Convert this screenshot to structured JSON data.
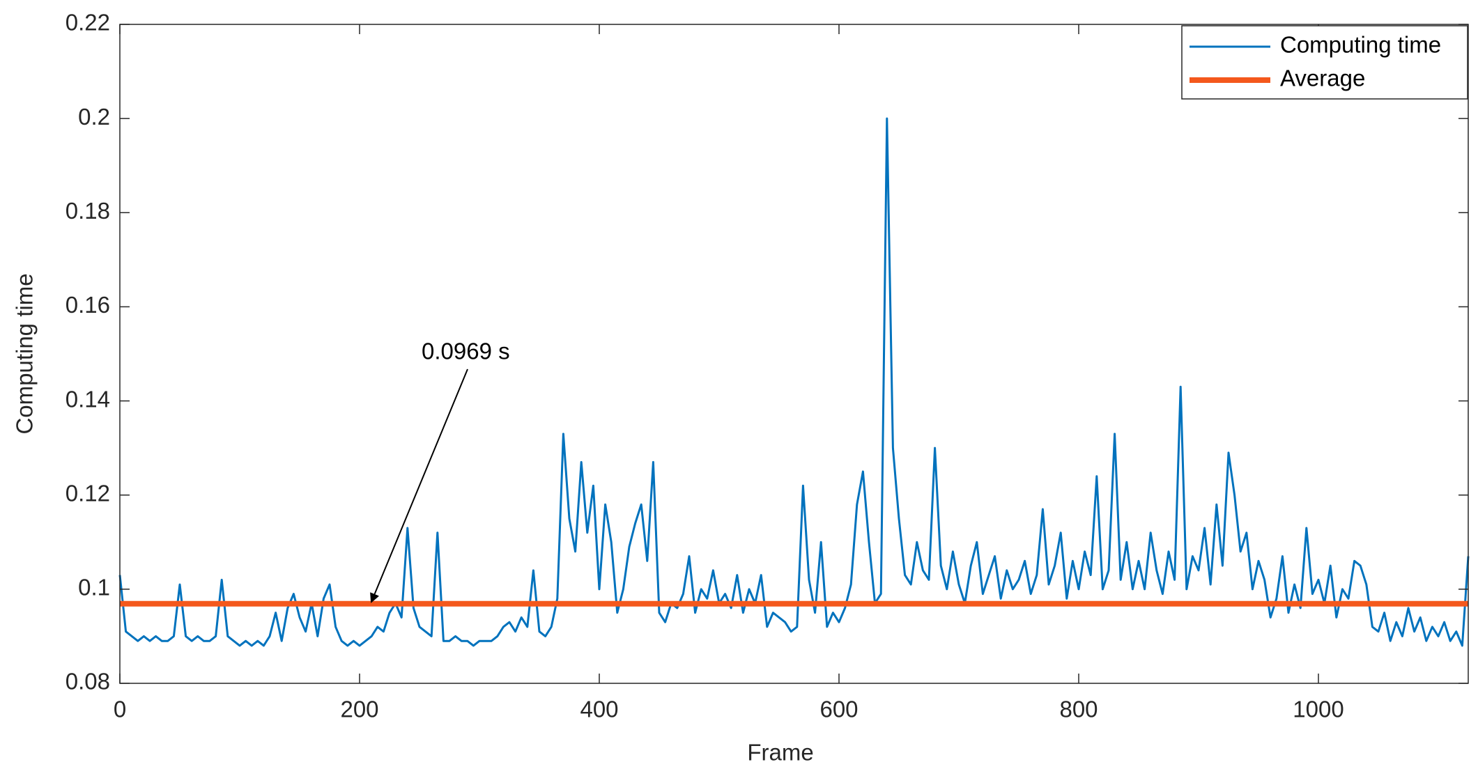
{
  "chart_data": {
    "type": "line",
    "xlabel": "Frame",
    "ylabel": "Computing time",
    "annotation": "0.0969 s",
    "xlim": [
      0,
      1125
    ],
    "ylim": [
      0.08,
      0.22
    ],
    "xticks": [
      0,
      200,
      400,
      600,
      800,
      1000
    ],
    "yticks": [
      0.08,
      0.1,
      0.12,
      0.14,
      0.16,
      0.18,
      0.2,
      0.22
    ],
    "legend": "northeast",
    "series": [
      {
        "name": "Computing time",
        "color": "#0072bd",
        "x": [
          0,
          5,
          10,
          15,
          20,
          25,
          30,
          35,
          40,
          45,
          50,
          55,
          60,
          65,
          70,
          75,
          80,
          85,
          90,
          95,
          100,
          105,
          110,
          115,
          120,
          125,
          130,
          135,
          140,
          145,
          150,
          155,
          160,
          165,
          170,
          175,
          180,
          185,
          190,
          195,
          200,
          205,
          210,
          215,
          220,
          225,
          230,
          235,
          240,
          245,
          250,
          255,
          260,
          265,
          270,
          275,
          280,
          285,
          290,
          295,
          300,
          305,
          310,
          315,
          320,
          325,
          330,
          335,
          340,
          345,
          350,
          355,
          360,
          365,
          370,
          375,
          380,
          385,
          390,
          395,
          400,
          405,
          410,
          415,
          420,
          425,
          430,
          435,
          440,
          445,
          450,
          455,
          460,
          465,
          470,
          475,
          480,
          485,
          490,
          495,
          500,
          505,
          510,
          515,
          520,
          525,
          530,
          535,
          540,
          545,
          550,
          555,
          560,
          565,
          570,
          575,
          580,
          585,
          590,
          595,
          600,
          605,
          610,
          615,
          620,
          625,
          630,
          635,
          640,
          645,
          650,
          655,
          660,
          665,
          670,
          675,
          680,
          685,
          690,
          695,
          700,
          705,
          710,
          715,
          720,
          725,
          730,
          735,
          740,
          745,
          750,
          755,
          760,
          765,
          770,
          775,
          780,
          785,
          790,
          795,
          800,
          805,
          810,
          815,
          820,
          825,
          830,
          835,
          840,
          845,
          850,
          855,
          860,
          865,
          870,
          875,
          880,
          885,
          890,
          895,
          900,
          905,
          910,
          915,
          920,
          925,
          930,
          935,
          940,
          945,
          950,
          955,
          960,
          965,
          970,
          975,
          980,
          985,
          990,
          995,
          1000,
          1005,
          1010,
          1015,
          1020,
          1025,
          1030,
          1035,
          1040,
          1045,
          1050,
          1055,
          1060,
          1065,
          1070,
          1075,
          1080,
          1085,
          1090,
          1095,
          1100,
          1105,
          1110,
          1115,
          1120,
          1125
        ],
        "values": [
          0.103,
          0.091,
          0.09,
          0.089,
          0.09,
          0.089,
          0.09,
          0.089,
          0.089,
          0.09,
          0.101,
          0.09,
          0.089,
          0.09,
          0.089,
          0.089,
          0.09,
          0.102,
          0.09,
          0.089,
          0.088,
          0.089,
          0.088,
          0.089,
          0.088,
          0.09,
          0.095,
          0.089,
          0.096,
          0.099,
          0.094,
          0.091,
          0.097,
          0.09,
          0.098,
          0.101,
          0.092,
          0.089,
          0.088,
          0.089,
          0.088,
          0.089,
          0.09,
          0.092,
          0.091,
          0.095,
          0.097,
          0.094,
          0.113,
          0.096,
          0.092,
          0.091,
          0.09,
          0.112,
          0.089,
          0.089,
          0.09,
          0.089,
          0.089,
          0.088,
          0.089,
          0.089,
          0.089,
          0.09,
          0.092,
          0.093,
          0.091,
          0.094,
          0.092,
          0.104,
          0.091,
          0.09,
          0.092,
          0.098,
          0.133,
          0.115,
          0.108,
          0.127,
          0.112,
          0.122,
          0.1,
          0.118,
          0.11,
          0.095,
          0.1,
          0.109,
          0.114,
          0.118,
          0.106,
          0.127,
          0.095,
          0.093,
          0.097,
          0.096,
          0.099,
          0.107,
          0.095,
          0.1,
          0.098,
          0.104,
          0.097,
          0.099,
          0.096,
          0.103,
          0.095,
          0.1,
          0.097,
          0.103,
          0.092,
          0.095,
          0.094,
          0.093,
          0.091,
          0.092,
          0.122,
          0.102,
          0.095,
          0.11,
          0.092,
          0.095,
          0.093,
          0.096,
          0.101,
          0.118,
          0.125,
          0.11,
          0.097,
          0.099,
          0.2,
          0.13,
          0.115,
          0.103,
          0.101,
          0.11,
          0.104,
          0.102,
          0.13,
          0.105,
          0.1,
          0.108,
          0.101,
          0.097,
          0.105,
          0.11,
          0.099,
          0.103,
          0.107,
          0.098,
          0.104,
          0.1,
          0.102,
          0.106,
          0.099,
          0.103,
          0.117,
          0.101,
          0.105,
          0.112,
          0.098,
          0.106,
          0.1,
          0.108,
          0.103,
          0.124,
          0.1,
          0.104,
          0.133,
          0.102,
          0.11,
          0.1,
          0.106,
          0.1,
          0.112,
          0.104,
          0.099,
          0.108,
          0.102,
          0.143,
          0.1,
          0.107,
          0.104,
          0.113,
          0.101,
          0.118,
          0.105,
          0.129,
          0.12,
          0.108,
          0.112,
          0.1,
          0.106,
          0.102,
          0.094,
          0.098,
          0.107,
          0.095,
          0.101,
          0.096,
          0.113,
          0.099,
          0.102,
          0.097,
          0.105,
          0.094,
          0.1,
          0.098,
          0.106,
          0.105,
          0.101,
          0.092,
          0.091,
          0.095,
          0.089,
          0.093,
          0.09,
          0.096,
          0.091,
          0.094,
          0.089,
          0.092,
          0.09,
          0.093,
          0.089,
          0.091,
          0.088,
          0.107
        ]
      },
      {
        "name": "Average",
        "color": "#f4581c",
        "x": [
          0,
          1125
        ],
        "values": [
          0.0969,
          0.0969
        ]
      }
    ]
  }
}
